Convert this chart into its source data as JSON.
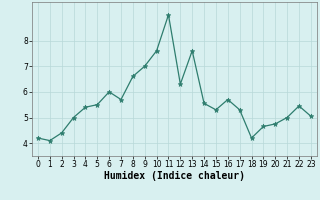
{
  "xlabel": "Humidex (Indice chaleur)",
  "ylabel": "",
  "x": [
    0,
    1,
    2,
    3,
    4,
    5,
    6,
    7,
    8,
    9,
    10,
    11,
    12,
    13,
    14,
    15,
    16,
    17,
    18,
    19,
    20,
    21,
    22,
    23
  ],
  "y": [
    4.2,
    4.1,
    4.4,
    5.0,
    5.4,
    5.5,
    6.0,
    5.7,
    6.6,
    7.0,
    7.6,
    9.0,
    6.3,
    7.6,
    5.55,
    5.3,
    5.7,
    5.3,
    4.2,
    4.65,
    4.75,
    5.0,
    5.45,
    5.05
  ],
  "line_color": "#2e7d6e",
  "marker": "*",
  "marker_size": 3.5,
  "bg_color": "#d8f0f0",
  "grid_color": "#b8d8d8",
  "ylim": [
    3.5,
    9.5
  ],
  "xlim": [
    -0.5,
    23.5
  ],
  "yticks": [
    4,
    5,
    6,
    7,
    8
  ],
  "xticks": [
    0,
    1,
    2,
    3,
    4,
    5,
    6,
    7,
    8,
    9,
    10,
    11,
    12,
    13,
    14,
    15,
    16,
    17,
    18,
    19,
    20,
    21,
    22,
    23
  ],
  "label_fontsize": 7,
  "tick_fontsize": 5.5
}
